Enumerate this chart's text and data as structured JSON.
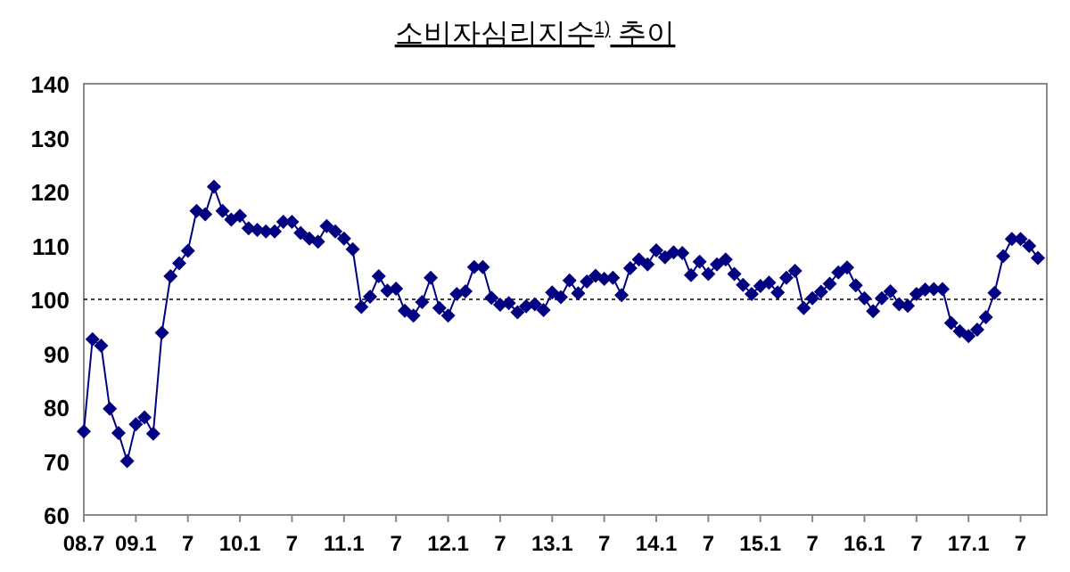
{
  "chart_data": {
    "type": "line",
    "title": "소비자심리지수$^{1)}$ 추이",
    "categories": [
      "08.7",
      null,
      null,
      null,
      null,
      null,
      "09.1",
      null,
      null,
      null,
      null,
      null,
      "7",
      null,
      null,
      null,
      null,
      null,
      "10.1",
      null,
      null,
      null,
      null,
      null,
      "7",
      null,
      null,
      null,
      null,
      null,
      "11.1",
      null,
      null,
      null,
      null,
      null,
      "7",
      null,
      null,
      null,
      null,
      null,
      "12.1",
      null,
      null,
      null,
      null,
      null,
      "7",
      null,
      null,
      null,
      null,
      null,
      "13.1",
      null,
      null,
      null,
      null,
      null,
      "7",
      null,
      null,
      null,
      null,
      null,
      "14.1",
      null,
      null,
      null,
      null,
      null,
      "7",
      null,
      null,
      null,
      null,
      null,
      "15.1",
      null,
      null,
      null,
      null,
      null,
      "7",
      null,
      null,
      null,
      null,
      null,
      "16.1",
      null,
      null,
      null,
      null,
      null,
      "7",
      null,
      null,
      null,
      null,
      null,
      "17.1",
      null,
      null,
      null,
      null,
      null,
      "7",
      null,
      null
    ],
    "series": [
      {
        "color": "#000080",
        "values": [
          75.5,
          92.6,
          91.4,
          79.7,
          75.2,
          70.0,
          76.8,
          78.1,
          75.1,
          93.8,
          104.3,
          106.7,
          109.0,
          116.4,
          115.8,
          120.9,
          116.4,
          114.8,
          115.5,
          113.2,
          112.9,
          112.6,
          112.6,
          114.4,
          114.4,
          112.3,
          111.3,
          110.7,
          113.6,
          112.6,
          111.3,
          109.3,
          98.6,
          100.5,
          104.3,
          101.6,
          102.0,
          97.9,
          97.0,
          99.5,
          104.0,
          98.4,
          97.0,
          101.0,
          101.5,
          106.0,
          106.0,
          100.3,
          99.0,
          99.3,
          97.6,
          98.7,
          99.1,
          98.0,
          101.3,
          100.4,
          103.5,
          101.1,
          103.3,
          104.4,
          103.8,
          104.0,
          100.8,
          105.8,
          107.4,
          106.5,
          109.1,
          107.8,
          108.7,
          108.6,
          104.5,
          107.0,
          104.7,
          106.5,
          107.4,
          104.7,
          102.7,
          101.0,
          102.5,
          103.1,
          101.3,
          104.0,
          105.3,
          98.4,
          100.2,
          101.4,
          102.9,
          105.0,
          105.9,
          102.6,
          100.2,
          97.8,
          100.2,
          101.5,
          99.1,
          98.8,
          101.0,
          101.8,
          101.9,
          101.9,
          95.6,
          94.1,
          93.2,
          94.4,
          96.7,
          101.2,
          108.0,
          111.2,
          111.2,
          109.9,
          107.7
        ]
      }
    ],
    "ylim": [
      60,
      140
    ],
    "yticks": [
      60,
      70,
      80,
      90,
      100,
      110,
      120,
      130,
      140
    ],
    "ref_lines": [
      {
        "axis": "y",
        "value": 100,
        "color": "#000000",
        "line_style": "dotted"
      }
    ],
    "marker": "diamond",
    "line_style": "solid",
    "grid": false
  }
}
